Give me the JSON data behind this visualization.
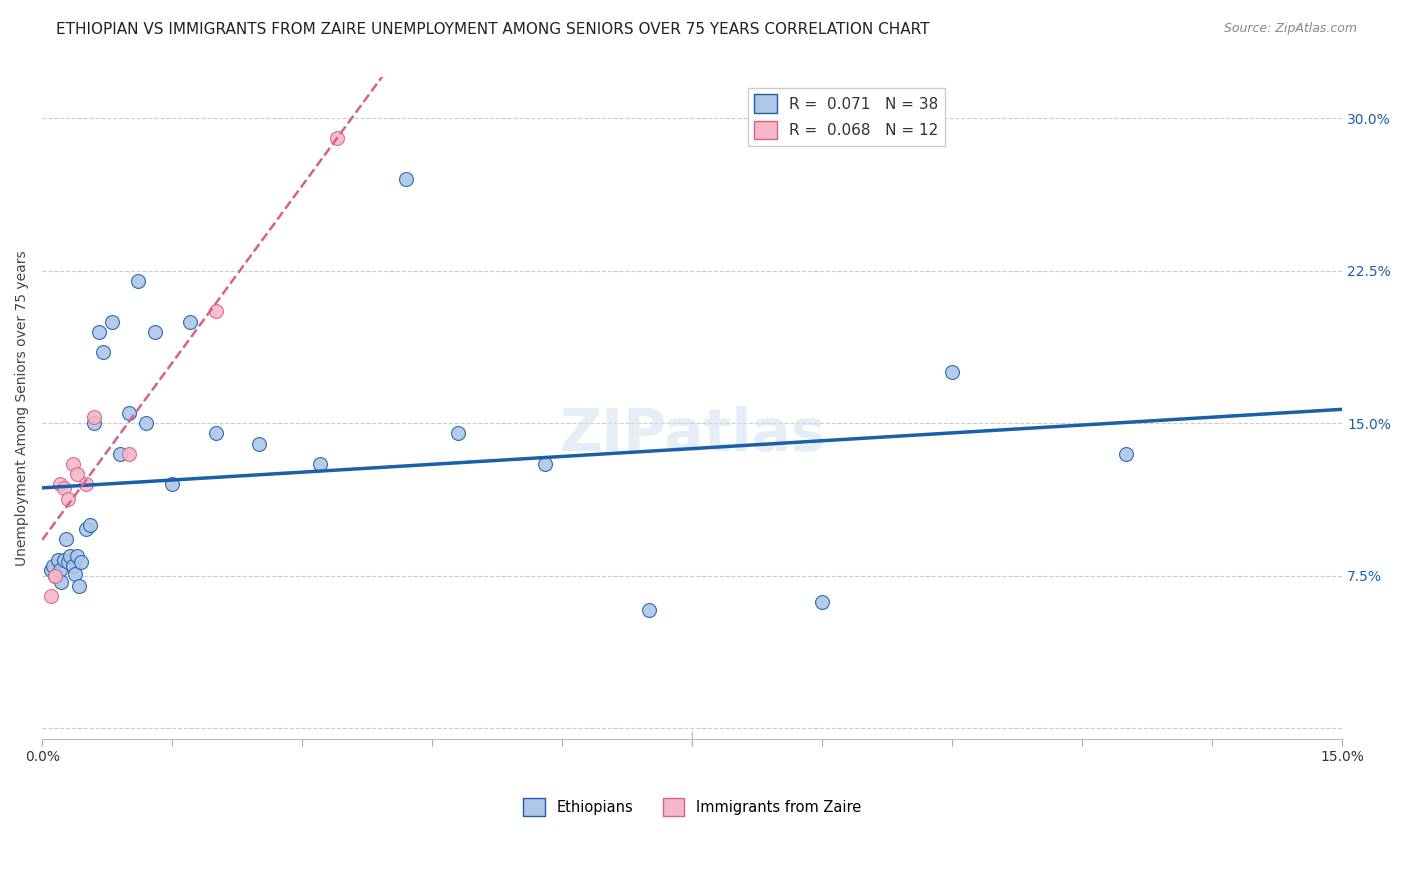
{
  "title": "ETHIOPIAN VS IMMIGRANTS FROM ZAIRE UNEMPLOYMENT AMONG SENIORS OVER 75 YEARS CORRELATION CHART",
  "source": "Source: ZipAtlas.com",
  "ylabel": "Unemployment Among Seniors over 75 years",
  "xlim": [
    0.0,
    0.15
  ],
  "ylim": [
    -0.005,
    0.32
  ],
  "xticks": [
    0.0,
    0.015,
    0.03,
    0.045,
    0.06,
    0.075,
    0.09,
    0.105,
    0.12,
    0.135,
    0.15
  ],
  "yticks": [
    0.0,
    0.075,
    0.15,
    0.225,
    0.3
  ],
  "ytick_labels_left": [
    "",
    "",
    "",
    "",
    ""
  ],
  "ytick_labels_right": [
    "",
    "7.5%",
    "15.0%",
    "22.5%",
    "30.0%"
  ],
  "xtick_labels": [
    "0.0%",
    "",
    "",
    "",
    "",
    "",
    "",
    "",
    "",
    "",
    "15.0%"
  ],
  "ethiopians_x": [
    0.001,
    0.0012,
    0.0015,
    0.0018,
    0.002,
    0.0022,
    0.0025,
    0.0028,
    0.003,
    0.0032,
    0.0035,
    0.0038,
    0.004,
    0.0042,
    0.0045,
    0.005,
    0.0055,
    0.006,
    0.0065,
    0.007,
    0.008,
    0.009,
    0.01,
    0.011,
    0.012,
    0.013,
    0.015,
    0.017,
    0.02,
    0.025,
    0.032,
    0.042,
    0.048,
    0.058,
    0.07,
    0.09,
    0.105,
    0.125
  ],
  "ethiopians_y": [
    0.078,
    0.08,
    0.075,
    0.083,
    0.078,
    0.072,
    0.083,
    0.093,
    0.082,
    0.085,
    0.08,
    0.076,
    0.085,
    0.07,
    0.082,
    0.098,
    0.1,
    0.15,
    0.195,
    0.185,
    0.2,
    0.135,
    0.155,
    0.22,
    0.15,
    0.195,
    0.12,
    0.2,
    0.145,
    0.14,
    0.13,
    0.27,
    0.145,
    0.13,
    0.058,
    0.062,
    0.175,
    0.135
  ],
  "zaire_x": [
    0.001,
    0.0015,
    0.002,
    0.0025,
    0.003,
    0.0035,
    0.004,
    0.005,
    0.006,
    0.01,
    0.02,
    0.034
  ],
  "zaire_y": [
    0.065,
    0.075,
    0.12,
    0.118,
    0.113,
    0.13,
    0.125,
    0.12,
    0.153,
    0.135,
    0.205,
    0.29
  ],
  "ethiopians_color": "#aec6e8",
  "zaire_color": "#f4b8c8",
  "ethiopians_line_color": "#1a5fa8",
  "zaire_line_color": "#d96088",
  "R_ethiopians": 0.071,
  "N_ethiopians": 38,
  "R_zaire": 0.068,
  "N_zaire": 12,
  "legend_label_ethiopians": "Ethiopians",
  "legend_label_zaire": "Immigrants from Zaire",
  "background_color": "#ffffff",
  "grid_color": "#cccccc",
  "title_fontsize": 11,
  "source_fontsize": 9,
  "axis_label_color": "#1a5fa8",
  "watermark_text": "ZIPatlas",
  "watermark_color": "#d0dff0"
}
